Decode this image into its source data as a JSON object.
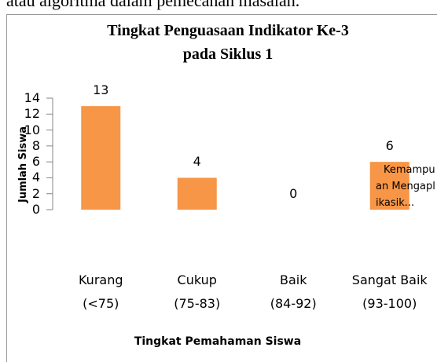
{
  "context_text": "atau algoritma dalam pemecahan masalah.",
  "chart_data": {
    "type": "bar",
    "title": "Tingkat Penguasaan Indikator Ke-3\npada Siklus 1",
    "categories": [
      "Kurang\n(<75)",
      "Cukup\n(75-83)",
      "Baik\n(84-92)",
      "Sangat Baik\n(93-100)"
    ],
    "series": [
      {
        "name": "Kemampuan Mengaplikasik...",
        "color": "#f79646",
        "values": [
          13,
          4,
          0,
          6
        ]
      }
    ],
    "ylim": [
      0,
      14
    ],
    "yticks": [
      0,
      2,
      4,
      6,
      8,
      10,
      12,
      14
    ],
    "y_axis_label": "Jumlah Siswa",
    "x_axis_label": "Tingkat Pemahaman Siswa",
    "grid": false,
    "legend": "right"
  }
}
